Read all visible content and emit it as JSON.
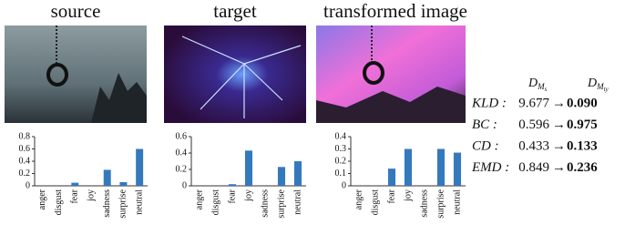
{
  "panels": [
    {
      "title": "source"
    },
    {
      "title": "target"
    },
    {
      "title": "transformed image"
    }
  ],
  "chart_data": [
    {
      "type": "bar",
      "categories": [
        "anger",
        "disgust",
        "fear",
        "joy",
        "sadness",
        "surprise",
        "neutral"
      ],
      "values": [
        0,
        0,
        0.05,
        0,
        0.26,
        0.06,
        0.6
      ],
      "color": "#3579bd",
      "ylim": [
        0,
        0.8
      ],
      "yticks": [
        0,
        0.2,
        0.4,
        0.6,
        0.8
      ],
      "grid": false
    },
    {
      "type": "bar",
      "categories": [
        "anger",
        "disgust",
        "fear",
        "joy",
        "sadness",
        "surprise",
        "neutral"
      ],
      "values": [
        0,
        0,
        0.02,
        0.43,
        0,
        0.23,
        0.3
      ],
      "color": "#3579bd",
      "ylim": [
        0,
        0.6
      ],
      "yticks": [
        0,
        0.2,
        0.4,
        0.6
      ],
      "grid": false
    },
    {
      "type": "bar",
      "categories": [
        "anger",
        "disgust",
        "fear",
        "joy",
        "sadness",
        "surprise",
        "neutral"
      ],
      "values": [
        0,
        0,
        0.14,
        0.3,
        0,
        0.3,
        0.27
      ],
      "color": "#3579bd",
      "ylim": [
        0,
        0.4
      ],
      "yticks": [
        0,
        0.1,
        0.2,
        0.3,
        0.4
      ],
      "grid": false
    }
  ],
  "metrics": {
    "headers": [
      {
        "base": "D",
        "sub": "M",
        "subsub": "s"
      },
      {
        "base": "D",
        "sub": "M",
        "subsub": "ty"
      }
    ],
    "rows": [
      {
        "label": "KLD :",
        "from": "9.677",
        "to": "0.090"
      },
      {
        "label": "BC :",
        "from": "0.596",
        "to": "0.975"
      },
      {
        "label": "CD :",
        "from": "0.433",
        "to": "0.133"
      },
      {
        "label": "EMD :",
        "from": "0.849",
        "to": "0.236"
      }
    ]
  }
}
